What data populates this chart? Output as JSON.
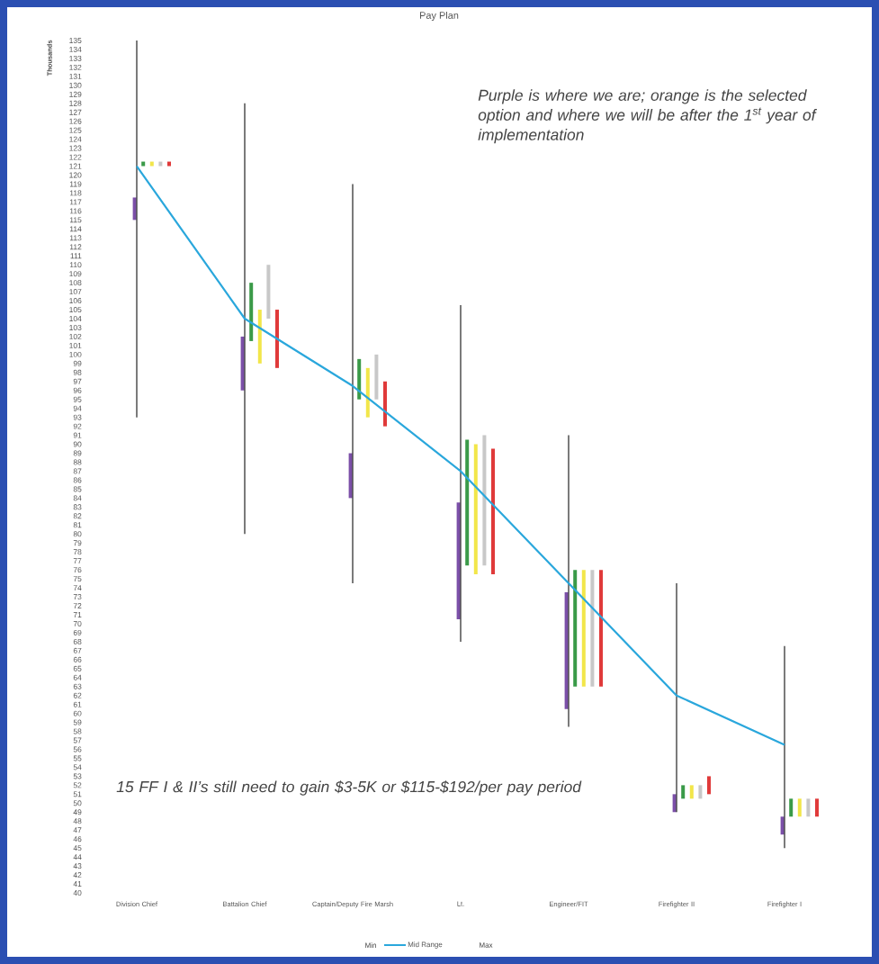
{
  "chart_data": {
    "type": "bar",
    "title": "Pay Plan",
    "ylabel": "Thousands",
    "categories": [
      "Division Chief",
      "Battalion Chief",
      "Captain/Deputy Fire Marsh",
      "Lt.",
      "Engineer/FIT",
      "Firefighter II",
      "Firefighter I"
    ],
    "ylim": [
      40,
      135
    ],
    "yticks": [
      40,
      41,
      42,
      43,
      44,
      45,
      46,
      47,
      48,
      49,
      50,
      51,
      52,
      53,
      54,
      55,
      56,
      57,
      58,
      59,
      60,
      61,
      62,
      63,
      64,
      65,
      66,
      67,
      68,
      69,
      70,
      71,
      72,
      73,
      74,
      75,
      76,
      77,
      78,
      79,
      80,
      81,
      82,
      83,
      84,
      85,
      86,
      87,
      88,
      89,
      90,
      91,
      92,
      93,
      94,
      95,
      96,
      97,
      98,
      99,
      100,
      101,
      102,
      103,
      104,
      105,
      106,
      107,
      108,
      109,
      110,
      111,
      112,
      113,
      114,
      115,
      116,
      117,
      118,
      119,
      120,
      121,
      122,
      123,
      124,
      125,
      126,
      127,
      128,
      129,
      130,
      131,
      132,
      133,
      134,
      135
    ],
    "legend": "bottom",
    "series": [
      {
        "name": "Mid Range",
        "type": "line",
        "color": "#2aa7dc",
        "values": [
          121,
          104,
          96.5,
          87,
          74.5,
          62,
          56.5
        ],
        "errors": [
          [
            93,
            135
          ],
          [
            80,
            128
          ],
          [
            74.5,
            119
          ],
          [
            68,
            105.5
          ],
          [
            58.5,
            91
          ],
          [
            49,
            74.5
          ],
          [
            45,
            67.5
          ]
        ]
      },
      {
        "color": "#7b4fa8",
        "base": [
          115,
          96,
          84,
          70.5,
          60.5,
          49,
          46.5
        ],
        "values": [
          2.5,
          6,
          5,
          13,
          13,
          2,
          2
        ]
      },
      {
        "color": "#3a9a48",
        "base": [
          121,
          101.5,
          95,
          76.5,
          63,
          50.5,
          48.5
        ],
        "values": [
          0.5,
          6.5,
          4.5,
          14,
          13,
          1.5,
          2
        ]
      },
      {
        "color": "#f2e64a",
        "base": [
          121,
          99,
          93,
          75.5,
          63,
          50.5,
          48.5
        ],
        "values": [
          0.5,
          6,
          5.5,
          14.5,
          13,
          1.5,
          2
        ]
      },
      {
        "color": "#c8c8c8",
        "base": [
          121,
          104,
          95,
          76.5,
          63,
          50.5,
          48.5
        ],
        "values": [
          0.5,
          6,
          5,
          14.5,
          13,
          1.5,
          2
        ]
      },
      {
        "color": "#e03a3a",
        "base": [
          121,
          98.5,
          92,
          75.5,
          63,
          51,
          48.5
        ],
        "values": [
          0.5,
          6.5,
          5,
          14,
          13,
          2,
          2
        ]
      }
    ],
    "annotations": [
      "Purple is where we are; orange is the selected option and where we will be after the 1$^{st}$ year of implementation",
      "15 FF I & II’s still need to gain $3-5K or $115-$192/per pay period",
      "Min",
      "Max"
    ]
  }
}
